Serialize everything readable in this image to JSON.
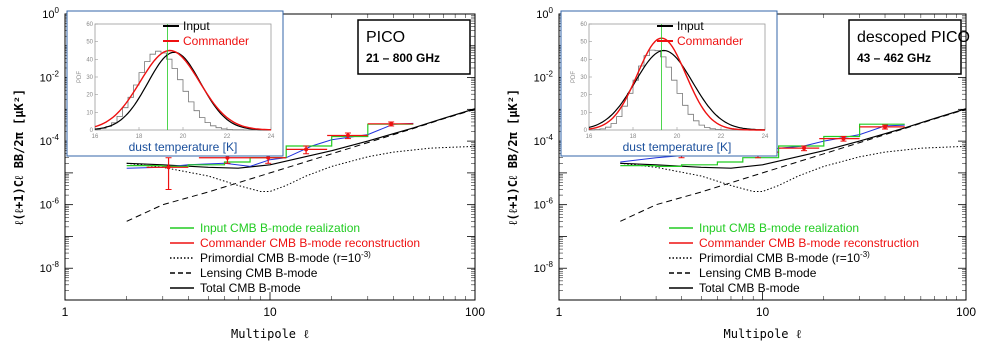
{
  "chart_data": [
    {
      "type": "line",
      "xlabel": "Multipole ℓ",
      "ylabel": "ℓ(ℓ+1)Cℓ BB/2π  [μK²]",
      "xscale": "log",
      "yscale": "log",
      "xlim": [
        1,
        100
      ],
      "ylim": [
        1e-09,
        1
      ],
      "x_ticks": [
        "1",
        "10",
        "100"
      ],
      "y_ticks": [
        "10^-8",
        "10^-6",
        "10^-4",
        "10^-2",
        "10^0"
      ],
      "box_title": "PICO",
      "box_subtitle": "21 – 800 GHz",
      "legend": [
        {
          "label": "Input CMB B-mode realization",
          "color": "#22cc22",
          "style": "solid"
        },
        {
          "label": "Commander CMB B-mode reconstruction",
          "color": "#ee1111",
          "style": "solid"
        },
        {
          "label": "Primordial CMB B-mode (r=10^-3)",
          "color": "#000000",
          "style": "dotted"
        },
        {
          "label": "Lensing CMB B-mode",
          "color": "#000000",
          "style": "dashed"
        },
        {
          "label": "Total CMB B-mode",
          "color": "#000000",
          "style": "solid"
        }
      ],
      "lines": {
        "primordial": {
          "x": [
            2,
            3,
            5,
            7,
            9,
            10,
            12,
            15,
            20,
            30,
            40,
            60,
            80,
            100
          ],
          "y": [
            2e-05,
            1.5e-05,
            8e-06,
            4e-06,
            2.6e-06,
            2.6e-06,
            4e-06,
            8e-06,
            1.6e-05,
            3.2e-05,
            4.5e-05,
            6e-05,
            6.5e-05,
            6.8e-05
          ]
        },
        "lensing": {
          "x": [
            2,
            3,
            5,
            10,
            20,
            30,
            50,
            70,
            100
          ],
          "y": [
            3e-07,
            1e-06,
            2.5e-06,
            1e-05,
            4e-05,
            9e-05,
            0.00025,
            0.0005,
            0.001
          ]
        },
        "total": {
          "x": [
            2,
            3,
            5,
            7,
            10,
            20,
            30,
            50,
            70,
            100
          ],
          "y": [
            2e-05,
            1.8e-05,
            1.5e-05,
            1.4e-05,
            1.8e-05,
            5e-05,
            0.0001,
            0.00026,
            0.00052,
            0.00105
          ]
        },
        "input_steps": {
          "x": [
            2,
            3,
            3,
            4,
            4,
            6,
            6,
            8,
            8,
            12,
            12,
            20,
            20,
            30,
            30,
            50
          ],
          "y": [
            1.7e-05,
            1.7e-05,
            1.6e-05,
            1.6e-05,
            1.8e-05,
            1.8e-05,
            2.2e-05,
            2.2e-05,
            3e-05,
            3e-05,
            7e-05,
            7e-05,
            0.00014,
            0.00014,
            0.00034,
            0.00034
          ]
        },
        "blue_input": {
          "x": [
            2,
            3,
            4,
            6,
            8,
            10,
            12,
            16,
            20,
            30,
            40,
            50
          ],
          "y": [
            1.4e-05,
            1.5e-05,
            1.8e-05,
            2e-05,
            1.6e-05,
            2.6e-05,
            3e-05,
            7e-05,
            0.00011,
            0.00016,
            0.00034,
            0.00036
          ]
        }
      },
      "commander_points": [
        {
          "x": 3.2,
          "y": 1.5e-05,
          "lo": 3e-06,
          "hi": 3e-05,
          "xlo": 2.5,
          "xhi": 4
        },
        {
          "x": 6.2,
          "y": 3e-05,
          "lo": 2e-05,
          "hi": 5e-05,
          "xlo": 4.5,
          "xhi": 8
        },
        {
          "x": 9.8,
          "y": 3e-05,
          "lo": 2e-05,
          "hi": 4e-05,
          "xlo": 8,
          "xhi": 12
        },
        {
          "x": 15,
          "y": 5.5e-05,
          "lo": 4e-05,
          "hi": 7e-05,
          "xlo": 12,
          "xhi": 19
        },
        {
          "x": 24,
          "y": 0.00015,
          "lo": 0.00012,
          "hi": 0.00018,
          "xlo": 19,
          "xhi": 30
        },
        {
          "x": 39,
          "y": 0.00035,
          "lo": 0.0003,
          "hi": 0.0004,
          "xlo": 30,
          "xhi": 50
        }
      ],
      "inset": {
        "xlabel": "dust temperature [K]",
        "ylabel": "PDF",
        "xlim": [
          16,
          24
        ],
        "ylim": [
          0,
          60
        ],
        "x_ticks": [
          "16",
          "18",
          "20",
          "22",
          "24"
        ],
        "y_ticks": [
          "0",
          "10",
          "20",
          "30",
          "40",
          "50",
          "60"
        ],
        "legend": [
          {
            "label": "Input",
            "color": "#000000"
          },
          {
            "label": "Commander",
            "color": "#ee1111"
          }
        ],
        "input_gaussian": {
          "mean": 19.6,
          "sigma": 1.2,
          "peak": 44
        },
        "commander_gaussian": {
          "mean": 19.4,
          "sigma": 1.35,
          "peak": 45
        },
        "hist_bins": {
          "x": [
            16.0,
            16.25,
            16.5,
            16.75,
            17.0,
            17.25,
            17.5,
            17.75,
            18.0,
            18.25,
            18.5,
            18.75,
            19.0,
            19.25,
            19.5,
            19.75,
            20.0,
            20.25,
            20.5,
            20.75,
            21.0,
            21.25,
            21.5,
            21.75,
            22.0,
            22.25,
            22.5,
            22.75,
            23.0,
            23.25,
            23.5,
            23.75
          ],
          "y": [
            0.4,
            0.9,
            2.0,
            4.1,
            7.7,
            12.6,
            18.5,
            25.5,
            32.5,
            38.7,
            42.9,
            44.6,
            43.6,
            40.1,
            34.8,
            28.5,
            21.9,
            15.9,
            10.9,
            7.0,
            4.2,
            2.4,
            1.3,
            0.6,
            0.3,
            0.1,
            0.1,
            0.0,
            0.0,
            0.0,
            0.0,
            0.0
          ]
        },
        "vline_x": 19.3
      }
    },
    {
      "type": "line",
      "xlabel": "Multipole ℓ",
      "ylabel": "ℓ(ℓ+1)Cℓ BB/2π  [μK²]",
      "xscale": "log",
      "yscale": "log",
      "xlim": [
        1,
        100
      ],
      "ylim": [
        1e-09,
        1
      ],
      "x_ticks": [
        "1",
        "10",
        "100"
      ],
      "y_ticks": [
        "10^-8",
        "10^-6",
        "10^-4",
        "10^-2",
        "10^0"
      ],
      "box_title": "descoped PICO",
      "box_subtitle": "43 – 462 GHz",
      "legend": [
        {
          "label": "Input CMB B-mode realization",
          "color": "#22cc22",
          "style": "solid"
        },
        {
          "label": "Commander CMB B-mode reconstruction",
          "color": "#ee1111",
          "style": "solid"
        },
        {
          "label": "Primordial CMB B-mode (r=10^-3)",
          "color": "#000000",
          "style": "dotted"
        },
        {
          "label": "Lensing CMB B-mode",
          "color": "#000000",
          "style": "dashed"
        },
        {
          "label": "Total CMB B-mode",
          "color": "#000000",
          "style": "solid"
        }
      ],
      "lines": {
        "primordial": {
          "x": [
            2,
            3,
            5,
            7,
            9,
            10,
            12,
            15,
            20,
            30,
            40,
            60,
            80,
            100
          ],
          "y": [
            2e-05,
            1.5e-05,
            8e-06,
            4e-06,
            2.6e-06,
            2.6e-06,
            4e-06,
            8e-06,
            1.6e-05,
            3.2e-05,
            4.5e-05,
            6e-05,
            6.5e-05,
            6.8e-05
          ]
        },
        "lensing": {
          "x": [
            2,
            3,
            5,
            10,
            20,
            30,
            50,
            70,
            100
          ],
          "y": [
            3e-07,
            1e-06,
            2.5e-06,
            1e-05,
            4e-05,
            9e-05,
            0.00025,
            0.0005,
            0.001
          ]
        },
        "total": {
          "x": [
            2,
            3,
            5,
            7,
            10,
            20,
            30,
            50,
            70,
            100
          ],
          "y": [
            2e-05,
            1.8e-05,
            1.5e-05,
            1.4e-05,
            1.8e-05,
            5e-05,
            0.0001,
            0.00026,
            0.00052,
            0.00105
          ]
        },
        "input_steps": {
          "x": [
            2,
            3,
            3,
            4,
            4,
            6,
            6,
            8,
            8,
            12,
            12,
            20,
            20,
            30,
            30,
            50
          ],
          "y": [
            1.7e-05,
            1.7e-05,
            1.6e-05,
            1.6e-05,
            1.8e-05,
            1.8e-05,
            2.2e-05,
            2.2e-05,
            3e-05,
            3e-05,
            7e-05,
            7e-05,
            0.00014,
            0.00014,
            0.00034,
            0.00034
          ]
        },
        "blue_input": {
          "x": [
            2,
            3,
            4,
            6,
            8,
            10,
            12,
            16,
            20,
            30,
            40,
            50
          ],
          "y": [
            2.2e-05,
            3e-05,
            3.5e-05,
            4e-05,
            5e-05,
            4.5e-05,
            6e-05,
            7e-05,
            0.0001,
            0.00016,
            0.0003,
            0.00032
          ]
        }
      },
      "commander_points": [
        {
          "x": 4,
          "y": 6e-05,
          "lo": 3e-05,
          "hi": 0.0001,
          "xlo": 2.5,
          "xhi": 6
        },
        {
          "x": 9.5,
          "y": 4.5e-05,
          "lo": 3e-05,
          "hi": 6e-05,
          "xlo": 6,
          "xhi": 12
        },
        {
          "x": 16,
          "y": 6e-05,
          "lo": 5e-05,
          "hi": 7e-05,
          "xlo": 12,
          "xhi": 19
        },
        {
          "x": 25,
          "y": 0.00012,
          "lo": 0.0001,
          "hi": 0.00014,
          "xlo": 19,
          "xhi": 30
        },
        {
          "x": 40,
          "y": 0.00028,
          "lo": 0.00024,
          "hi": 0.00032,
          "xlo": 30,
          "xhi": 50
        }
      ],
      "inset": {
        "xlabel": "dust temperature [K]",
        "ylabel": "PDF",
        "xlim": [
          16,
          24
        ],
        "ylim": [
          0,
          60
        ],
        "x_ticks": [
          "16",
          "18",
          "20",
          "22",
          "24"
        ],
        "y_ticks": [
          "0",
          "10",
          "20",
          "30",
          "40",
          "50",
          "60"
        ],
        "legend": [
          {
            "label": "Input",
            "color": "#000000"
          },
          {
            "label": "Commander",
            "color": "#ee1111"
          }
        ],
        "input_gaussian": {
          "mean": 19.4,
          "sigma": 1.3,
          "peak": 45
        },
        "commander_gaussian": {
          "mean": 19.3,
          "sigma": 1.1,
          "peak": 52
        },
        "hist_bins": {
          "x": [
            16.0,
            16.25,
            16.5,
            16.75,
            17.0,
            17.25,
            17.5,
            17.75,
            18.0,
            18.25,
            18.5,
            18.75,
            19.0,
            19.25,
            19.5,
            19.75,
            20.0,
            20.25,
            20.5,
            20.75,
            21.0,
            21.25,
            21.5,
            21.75,
            22.0,
            22.25,
            22.5,
            22.75,
            23.0,
            23.25,
            23.5,
            23.75
          ],
          "y": [
            0.1,
            0.2,
            0.6,
            1.6,
            3.7,
            7.6,
            13.5,
            20.8,
            28.2,
            36.2,
            42.1,
            45.2,
            44.9,
            41.4,
            35.6,
            28.2,
            20.7,
            14.0,
            8.9,
            5.2,
            2.8,
            1.4,
            0.7,
            0.3,
            0.1,
            0.0,
            0.0,
            0.0,
            0.0,
            0.0,
            0.0,
            0.0
          ]
        },
        "vline_x": 19.3
      }
    }
  ]
}
